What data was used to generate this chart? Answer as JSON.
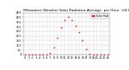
{
  "title": "Milwaukee Weather Solar Radiation Average  per Hour  (24 Hours)",
  "title_fontsize": 3.2,
  "hours": [
    0,
    1,
    2,
    3,
    4,
    5,
    6,
    7,
    8,
    9,
    10,
    11,
    12,
    13,
    14,
    15,
    16,
    17,
    18,
    19,
    20,
    21,
    22,
    23
  ],
  "solar_radiation": [
    0,
    0,
    0,
    0,
    0,
    0,
    2,
    18,
    80,
    180,
    290,
    370,
    400,
    370,
    310,
    240,
    150,
    60,
    10,
    1,
    0,
    0,
    0,
    0
  ],
  "dot_color": "#ff0000",
  "dot_size": 1.5,
  "bg_color": "#ffffff",
  "grid_color": "#bbbbbb",
  "ylim": [
    0,
    450
  ],
  "yticks": [
    0,
    50,
    100,
    150,
    200,
    250,
    300,
    350,
    400,
    450
  ],
  "legend_label": "Solar Rad",
  "legend_color": "#ff0000",
  "tick_fontsize": 2.5,
  "border_color": "#888888",
  "xtick_labels": [
    "0",
    "1",
    "2",
    "3",
    "4",
    "5",
    "6",
    "7",
    "8",
    "9",
    "10",
    "11",
    "12",
    "13",
    "14",
    "15",
    "16",
    "17",
    "18",
    "19",
    "20",
    "21",
    "22",
    "23"
  ]
}
